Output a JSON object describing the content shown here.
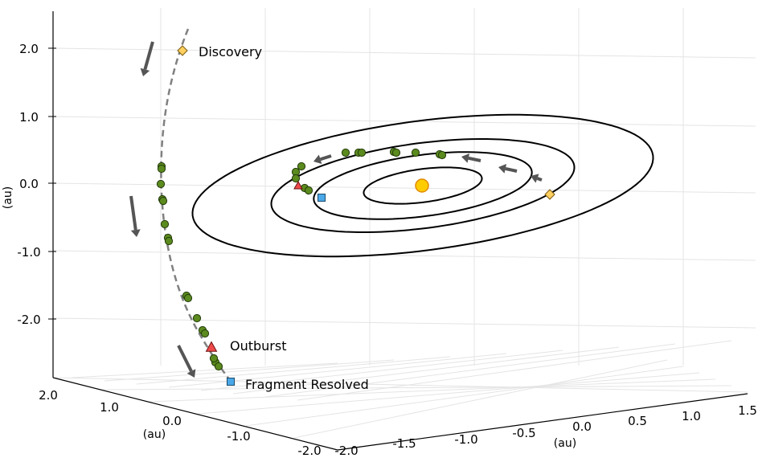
{
  "chart_data": {
    "type": "scatter",
    "projection": "3d",
    "title": "",
    "axes": {
      "x": {
        "label": "(au)",
        "ticks": [
          "-2.0",
          "-1.5",
          "-1.0",
          "-0.5",
          "0.0",
          "0.5",
          "1.0",
          "1.5"
        ],
        "range": [
          -2.0,
          1.5
        ]
      },
      "y": {
        "label": "(au)",
        "ticks": [
          "2.0",
          "1.0",
          "0.0",
          "-1.0",
          "-2.0"
        ],
        "range": [
          -2.0,
          2.0
        ]
      },
      "z": {
        "label": "(au)",
        "ticks": [
          "2.0",
          "1.0",
          "0.0",
          "-1.0",
          "-2.0"
        ],
        "range": [
          -2.0,
          2.0
        ]
      }
    },
    "grid": true,
    "series": [
      {
        "name": "Planetary orbits",
        "kind": "line",
        "color": "#000000",
        "semi_major_axes_au": [
          0.39,
          0.72,
          1.0,
          1.52
        ]
      },
      {
        "name": "Comet trajectory",
        "kind": "dashed-line",
        "color": "#808080"
      },
      {
        "name": "Observations",
        "kind": "point",
        "color": "#5b8a1e",
        "count_trajectory": 19,
        "count_ecliptic": 14
      },
      {
        "name": "Sun",
        "kind": "point",
        "color": "#ffcc00",
        "x": 0,
        "y": 0,
        "z": 0
      }
    ],
    "annotations": [
      {
        "text": "Discovery",
        "marker": "diamond",
        "color": "#ffd060"
      },
      {
        "text": "Outburst",
        "marker": "triangle",
        "color": "#ef4a4a"
      },
      {
        "text": "Fragment Resolved",
        "marker": "square",
        "color": "#4aa8e8"
      }
    ]
  }
}
